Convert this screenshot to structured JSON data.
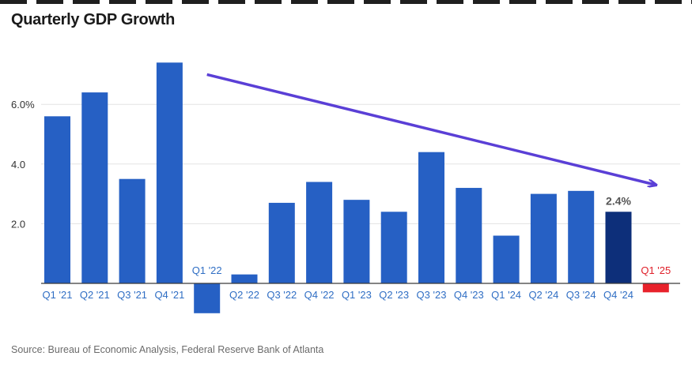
{
  "title": "Quarterly GDP Growth",
  "source": "Source: Bureau of Economic Analysis, Federal Reserve Bank of Atlanta",
  "colors": {
    "bar": "#2660c4",
    "highlight": "#0d2f7a",
    "negative_forecast": "#e8222b",
    "arrow": "#5a3fd6",
    "grid": "#e3e3e3",
    "axis": "#3a3a3a"
  },
  "chart_data": {
    "type": "bar",
    "title": "Quarterly GDP Growth",
    "categories": [
      "Q1 '21",
      "Q2 '21",
      "Q3 '21",
      "Q4 '21",
      "Q1 '22",
      "Q2 '22",
      "Q3 '22",
      "Q4 '22",
      "Q1 '23",
      "Q2 '23",
      "Q3 '23",
      "Q4 '23",
      "Q1 '24",
      "Q2 '24",
      "Q3 '24",
      "Q4 '24",
      "Q1 '25"
    ],
    "values": [
      5.6,
      6.4,
      3.5,
      7.4,
      -1.0,
      0.3,
      2.7,
      3.4,
      2.8,
      2.4,
      4.4,
      3.2,
      1.6,
      3.0,
      3.1,
      2.4,
      -0.3
    ],
    "yticks": [
      {
        "value": 2,
        "label": "2.0"
      },
      {
        "value": 4,
        "label": "4.0"
      },
      {
        "value": 6,
        "label": "6.0%"
      }
    ],
    "ylim": [
      -1.2,
      8
    ],
    "grid": true,
    "highlight_index": 15,
    "forecast_index": 16,
    "annotations": [
      {
        "category_index": 15,
        "text": "2.4%"
      }
    ],
    "trend_arrow": {
      "from": {
        "x_index": 4,
        "y": 7.0
      },
      "to": {
        "x_index": 16,
        "y": 3.3
      }
    },
    "xlabel": "",
    "ylabel": ""
  }
}
